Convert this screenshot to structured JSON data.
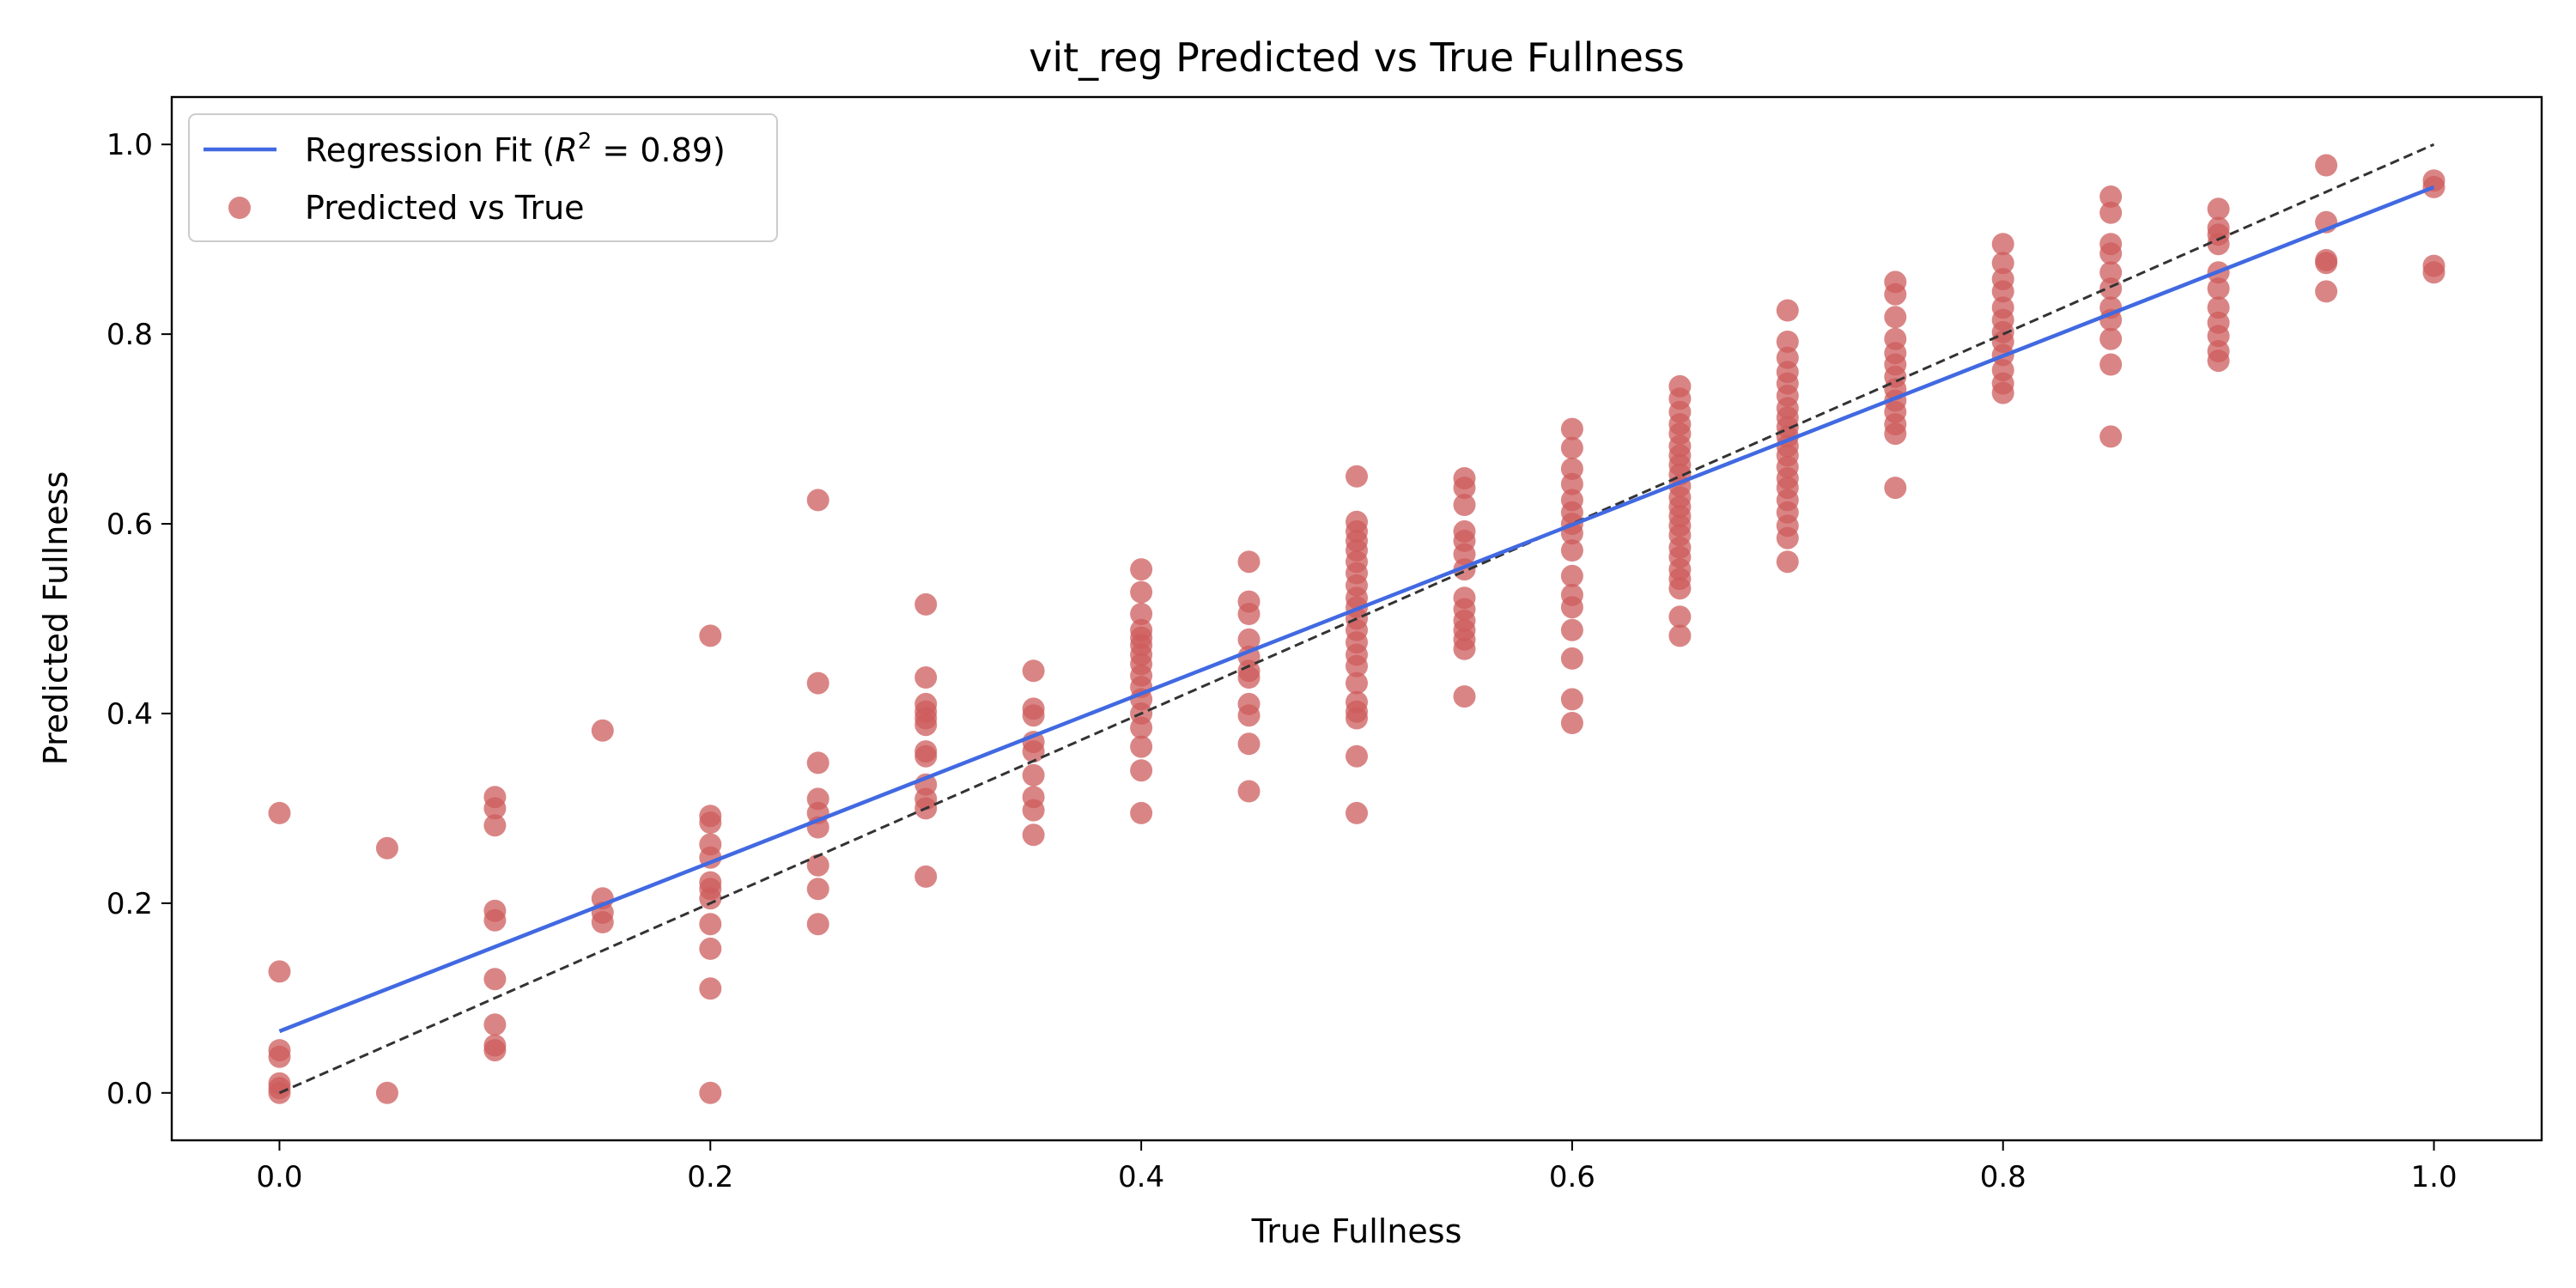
{
  "chart_data": {
    "type": "scatter",
    "title": "vit_reg Predicted vs True Fullness",
    "xlabel": "True Fullness",
    "ylabel": "Predicted Fullness",
    "xlim": [
      -0.05,
      1.05
    ],
    "ylim": [
      -0.05,
      1.05
    ],
    "xticks": [
      0.0,
      0.2,
      0.4,
      0.6,
      0.8,
      1.0
    ],
    "yticks": [
      0.0,
      0.2,
      0.4,
      0.6,
      0.8,
      1.0
    ],
    "xtick_labels": [
      "0.0",
      "0.2",
      "0.4",
      "0.6",
      "0.8",
      "1.0"
    ],
    "ytick_labels": [
      "0.0",
      "0.2",
      "0.4",
      "0.6",
      "0.8",
      "1.0"
    ],
    "grid": false,
    "legend_position": "top-left",
    "legend": {
      "fit_label_prefix": "Regression Fit (",
      "fit_label_r2": "R",
      "fit_label_sup": "2",
      "fit_label_suffix": " = 0.89)",
      "scatter_label": "Predicted vs True"
    },
    "colors": {
      "points": "#cd5c5c",
      "fit_line": "#4169e1",
      "reference_line": "#333333"
    },
    "regression_fit": {
      "x": [
        0.0,
        1.0
      ],
      "y": [
        0.065,
        0.955
      ],
      "r2": 0.89
    },
    "reference_line": {
      "x": [
        0.0,
        1.0
      ],
      "y": [
        0.0,
        1.0
      ]
    },
    "series": [
      {
        "name": "Predicted vs True",
        "points": [
          [
            0.0,
            0.0
          ],
          [
            0.0,
            0.005
          ],
          [
            0.0,
            0.01
          ],
          [
            0.0,
            0.038
          ],
          [
            0.0,
            0.045
          ],
          [
            0.0,
            0.128
          ],
          [
            0.0,
            0.295
          ],
          [
            0.05,
            0.0
          ],
          [
            0.05,
            0.258
          ],
          [
            0.1,
            0.045
          ],
          [
            0.1,
            0.05
          ],
          [
            0.1,
            0.072
          ],
          [
            0.1,
            0.12
          ],
          [
            0.1,
            0.182
          ],
          [
            0.1,
            0.192
          ],
          [
            0.1,
            0.282
          ],
          [
            0.1,
            0.3
          ],
          [
            0.1,
            0.312
          ],
          [
            0.15,
            0.18
          ],
          [
            0.15,
            0.19
          ],
          [
            0.15,
            0.205
          ],
          [
            0.15,
            0.382
          ],
          [
            0.2,
            0.0
          ],
          [
            0.2,
            0.11
          ],
          [
            0.2,
            0.152
          ],
          [
            0.2,
            0.178
          ],
          [
            0.2,
            0.205
          ],
          [
            0.2,
            0.215
          ],
          [
            0.2,
            0.222
          ],
          [
            0.2,
            0.248
          ],
          [
            0.2,
            0.262
          ],
          [
            0.2,
            0.285
          ],
          [
            0.2,
            0.292
          ],
          [
            0.2,
            0.482
          ],
          [
            0.25,
            0.178
          ],
          [
            0.25,
            0.215
          ],
          [
            0.25,
            0.24
          ],
          [
            0.25,
            0.28
          ],
          [
            0.25,
            0.295
          ],
          [
            0.25,
            0.31
          ],
          [
            0.25,
            0.348
          ],
          [
            0.25,
            0.432
          ],
          [
            0.25,
            0.625
          ],
          [
            0.3,
            0.228
          ],
          [
            0.3,
            0.3
          ],
          [
            0.3,
            0.31
          ],
          [
            0.3,
            0.325
          ],
          [
            0.3,
            0.355
          ],
          [
            0.3,
            0.36
          ],
          [
            0.3,
            0.388
          ],
          [
            0.3,
            0.395
          ],
          [
            0.3,
            0.402
          ],
          [
            0.3,
            0.41
          ],
          [
            0.3,
            0.438
          ],
          [
            0.3,
            0.515
          ],
          [
            0.35,
            0.272
          ],
          [
            0.35,
            0.298
          ],
          [
            0.35,
            0.312
          ],
          [
            0.35,
            0.335
          ],
          [
            0.35,
            0.36
          ],
          [
            0.35,
            0.37
          ],
          [
            0.35,
            0.398
          ],
          [
            0.35,
            0.405
          ],
          [
            0.35,
            0.445
          ],
          [
            0.4,
            0.295
          ],
          [
            0.4,
            0.34
          ],
          [
            0.4,
            0.365
          ],
          [
            0.4,
            0.385
          ],
          [
            0.4,
            0.4
          ],
          [
            0.4,
            0.415
          ],
          [
            0.4,
            0.428
          ],
          [
            0.4,
            0.44
          ],
          [
            0.4,
            0.452
          ],
          [
            0.4,
            0.462
          ],
          [
            0.4,
            0.472
          ],
          [
            0.4,
            0.48
          ],
          [
            0.4,
            0.488
          ],
          [
            0.4,
            0.505
          ],
          [
            0.4,
            0.528
          ],
          [
            0.4,
            0.552
          ],
          [
            0.45,
            0.318
          ],
          [
            0.45,
            0.368
          ],
          [
            0.45,
            0.398
          ],
          [
            0.45,
            0.41
          ],
          [
            0.45,
            0.438
          ],
          [
            0.45,
            0.445
          ],
          [
            0.45,
            0.46
          ],
          [
            0.45,
            0.478
          ],
          [
            0.45,
            0.505
          ],
          [
            0.45,
            0.518
          ],
          [
            0.45,
            0.56
          ],
          [
            0.5,
            0.295
          ],
          [
            0.5,
            0.355
          ],
          [
            0.5,
            0.395
          ],
          [
            0.5,
            0.402
          ],
          [
            0.5,
            0.412
          ],
          [
            0.5,
            0.432
          ],
          [
            0.5,
            0.45
          ],
          [
            0.5,
            0.462
          ],
          [
            0.5,
            0.475
          ],
          [
            0.5,
            0.488
          ],
          [
            0.5,
            0.5
          ],
          [
            0.5,
            0.512
          ],
          [
            0.5,
            0.522
          ],
          [
            0.5,
            0.535
          ],
          [
            0.5,
            0.548
          ],
          [
            0.5,
            0.56
          ],
          [
            0.5,
            0.572
          ],
          [
            0.5,
            0.582
          ],
          [
            0.5,
            0.592
          ],
          [
            0.5,
            0.602
          ],
          [
            0.5,
            0.65
          ],
          [
            0.55,
            0.418
          ],
          [
            0.55,
            0.468
          ],
          [
            0.55,
            0.478
          ],
          [
            0.55,
            0.488
          ],
          [
            0.55,
            0.498
          ],
          [
            0.55,
            0.51
          ],
          [
            0.55,
            0.522
          ],
          [
            0.55,
            0.552
          ],
          [
            0.55,
            0.568
          ],
          [
            0.55,
            0.582
          ],
          [
            0.55,
            0.592
          ],
          [
            0.55,
            0.62
          ],
          [
            0.55,
            0.638
          ],
          [
            0.55,
            0.648
          ],
          [
            0.6,
            0.39
          ],
          [
            0.6,
            0.415
          ],
          [
            0.6,
            0.458
          ],
          [
            0.6,
            0.488
          ],
          [
            0.6,
            0.512
          ],
          [
            0.6,
            0.525
          ],
          [
            0.6,
            0.545
          ],
          [
            0.6,
            0.572
          ],
          [
            0.6,
            0.59
          ],
          [
            0.6,
            0.6
          ],
          [
            0.6,
            0.612
          ],
          [
            0.6,
            0.625
          ],
          [
            0.6,
            0.642
          ],
          [
            0.6,
            0.658
          ],
          [
            0.6,
            0.68
          ],
          [
            0.6,
            0.7
          ],
          [
            0.65,
            0.482
          ],
          [
            0.65,
            0.502
          ],
          [
            0.65,
            0.532
          ],
          [
            0.65,
            0.542
          ],
          [
            0.65,
            0.552
          ],
          [
            0.65,
            0.565
          ],
          [
            0.65,
            0.575
          ],
          [
            0.65,
            0.588
          ],
          [
            0.65,
            0.598
          ],
          [
            0.65,
            0.608
          ],
          [
            0.65,
            0.618
          ],
          [
            0.65,
            0.628
          ],
          [
            0.65,
            0.64
          ],
          [
            0.65,
            0.652
          ],
          [
            0.65,
            0.662
          ],
          [
            0.65,
            0.672
          ],
          [
            0.65,
            0.682
          ],
          [
            0.65,
            0.695
          ],
          [
            0.65,
            0.705
          ],
          [
            0.65,
            0.718
          ],
          [
            0.65,
            0.732
          ],
          [
            0.65,
            0.745
          ],
          [
            0.7,
            0.56
          ],
          [
            0.7,
            0.585
          ],
          [
            0.7,
            0.598
          ],
          [
            0.7,
            0.612
          ],
          [
            0.7,
            0.625
          ],
          [
            0.7,
            0.638
          ],
          [
            0.7,
            0.648
          ],
          [
            0.7,
            0.66
          ],
          [
            0.7,
            0.672
          ],
          [
            0.7,
            0.682
          ],
          [
            0.7,
            0.692
          ],
          [
            0.7,
            0.702
          ],
          [
            0.7,
            0.712
          ],
          [
            0.7,
            0.722
          ],
          [
            0.7,
            0.735
          ],
          [
            0.7,
            0.748
          ],
          [
            0.7,
            0.76
          ],
          [
            0.7,
            0.775
          ],
          [
            0.7,
            0.792
          ],
          [
            0.7,
            0.825
          ],
          [
            0.75,
            0.638
          ],
          [
            0.75,
            0.695
          ],
          [
            0.75,
            0.705
          ],
          [
            0.75,
            0.718
          ],
          [
            0.75,
            0.73
          ],
          [
            0.75,
            0.742
          ],
          [
            0.75,
            0.755
          ],
          [
            0.75,
            0.768
          ],
          [
            0.75,
            0.78
          ],
          [
            0.75,
            0.795
          ],
          [
            0.75,
            0.818
          ],
          [
            0.75,
            0.842
          ],
          [
            0.75,
            0.855
          ],
          [
            0.8,
            0.738
          ],
          [
            0.8,
            0.748
          ],
          [
            0.8,
            0.762
          ],
          [
            0.8,
            0.778
          ],
          [
            0.8,
            0.792
          ],
          [
            0.8,
            0.802
          ],
          [
            0.8,
            0.815
          ],
          [
            0.8,
            0.828
          ],
          [
            0.8,
            0.845
          ],
          [
            0.8,
            0.858
          ],
          [
            0.8,
            0.875
          ],
          [
            0.8,
            0.895
          ],
          [
            0.85,
            0.692
          ],
          [
            0.85,
            0.768
          ],
          [
            0.85,
            0.795
          ],
          [
            0.85,
            0.815
          ],
          [
            0.85,
            0.828
          ],
          [
            0.85,
            0.848
          ],
          [
            0.85,
            0.865
          ],
          [
            0.85,
            0.885
          ],
          [
            0.85,
            0.895
          ],
          [
            0.85,
            0.928
          ],
          [
            0.85,
            0.945
          ],
          [
            0.9,
            0.772
          ],
          [
            0.9,
            0.782
          ],
          [
            0.9,
            0.798
          ],
          [
            0.9,
            0.812
          ],
          [
            0.9,
            0.828
          ],
          [
            0.9,
            0.848
          ],
          [
            0.9,
            0.865
          ],
          [
            0.9,
            0.895
          ],
          [
            0.9,
            0.905
          ],
          [
            0.9,
            0.912
          ],
          [
            0.9,
            0.932
          ],
          [
            0.95,
            0.845
          ],
          [
            0.95,
            0.875
          ],
          [
            0.95,
            0.878
          ],
          [
            0.95,
            0.918
          ],
          [
            0.95,
            0.978
          ],
          [
            1.0,
            0.865
          ],
          [
            1.0,
            0.872
          ],
          [
            1.0,
            0.955
          ],
          [
            1.0,
            0.962
          ]
        ]
      }
    ]
  }
}
